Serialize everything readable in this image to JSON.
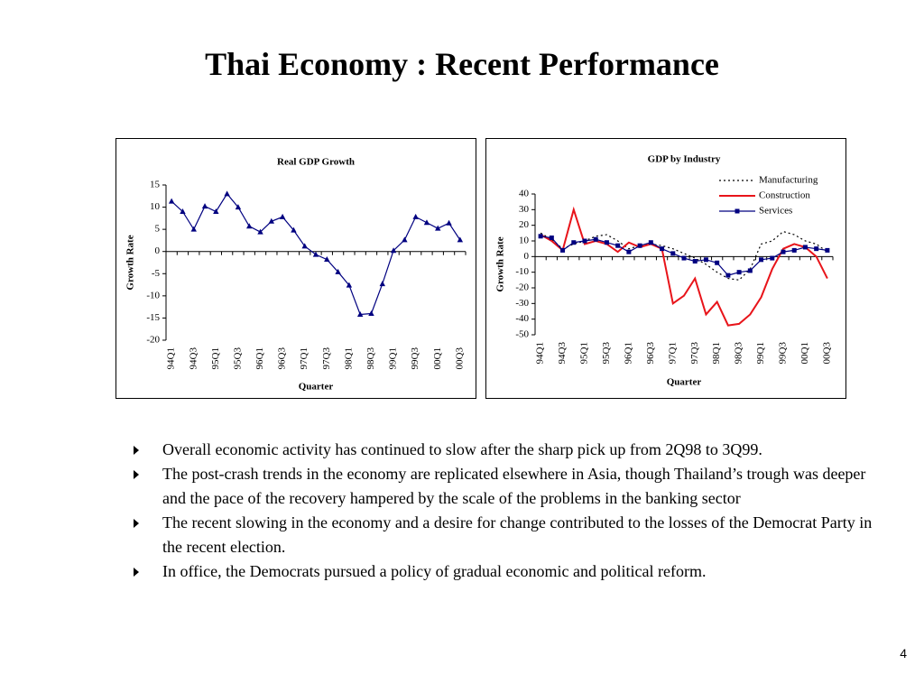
{
  "title": "Thai Economy  :  Recent Performance",
  "chart_data": [
    {
      "type": "line",
      "title": "Real GDP Growth",
      "x_label": "Quarter",
      "y_label": "Growth Rate",
      "categories": [
        "94Q1",
        null,
        "94Q3",
        null,
        "95Q1",
        null,
        "95Q3",
        null,
        "96Q1",
        null,
        "96Q3",
        null,
        "97Q1",
        null,
        "97Q3",
        null,
        "98Q1",
        null,
        "98Q3",
        null,
        "99Q1",
        null,
        "99Q3",
        null,
        "00Q1",
        null,
        "00Q3"
      ],
      "values": [
        11.3,
        9.0,
        5.0,
        10.2,
        9.0,
        13.0,
        10.0,
        5.7,
        4.4,
        6.8,
        7.8,
        4.8,
        1.2,
        -0.7,
        -1.8,
        -4.6,
        -7.6,
        -14.2,
        -14.0,
        -7.3,
        0.2,
        2.6,
        7.8,
        6.5,
        5.2,
        6.4,
        2.6
      ],
      "color": "#000080",
      "marker": "triangle",
      "line_style": "solid",
      "ylim": [
        -20,
        15
      ],
      "yticks": [
        -20,
        -15,
        -10,
        -5,
        0,
        5,
        10,
        15
      ],
      "grid": false
    },
    {
      "type": "line",
      "title": "GDP by Industry",
      "x_label": "Quarter",
      "y_label": "Growth Rate",
      "categories": [
        "94Q1",
        null,
        "94Q3",
        null,
        "95Q1",
        null,
        "95Q3",
        null,
        "96Q1",
        null,
        "96Q3",
        null,
        "97Q1",
        null,
        "97Q3",
        null,
        "98Q1",
        null,
        "98Q3",
        null,
        "99Q1",
        null,
        "99Q3",
        null,
        "00Q1",
        null,
        "00Q3"
      ],
      "series": [
        {
          "name": "Manufacturing",
          "color": "#000000",
          "line_style": "dotted",
          "marker": "none",
          "values": [
            15,
            11,
            5,
            8,
            10,
            13,
            14,
            10,
            5,
            7,
            8,
            7,
            5,
            2,
            -1,
            -5,
            -10,
            -14,
            -15,
            -8,
            8,
            10,
            16,
            14,
            10,
            8,
            3
          ]
        },
        {
          "name": "Construction",
          "color": "#e8141a",
          "line_style": "solid",
          "marker": "none",
          "values": [
            14,
            10,
            4,
            30,
            8,
            10,
            8,
            3,
            9,
            6,
            8,
            5,
            -30,
            -25,
            -14,
            -37,
            -29,
            -44,
            -43,
            -37,
            -26,
            -8,
            5,
            8,
            6,
            0,
            -14
          ]
        },
        {
          "name": "Services",
          "color": "#000080",
          "line_style": "solid",
          "marker": "square",
          "values": [
            13,
            12,
            4,
            9,
            10,
            11,
            9,
            7,
            3,
            7,
            9,
            5,
            2,
            -1,
            -3,
            -2,
            -4,
            -12,
            -10,
            -9,
            -2,
            -1,
            3,
            4,
            6,
            5,
            4
          ]
        }
      ],
      "legend": "upper right",
      "ylim": [
        -50,
        40
      ],
      "yticks": [
        -50,
        -40,
        -30,
        -20,
        -10,
        0,
        10,
        20,
        30,
        40
      ],
      "grid": false
    }
  ],
  "bullets": [
    "Overall economic activity has continued to slow after the sharp pick up from 2Q98 to 3Q99.",
    "The post-crash trends in the economy are replicated elsewhere in Asia, though Thailand’s trough was deeper and the pace of the recovery hampered by the scale of the problems in the banking sector",
    "The recent slowing in the economy and a desire for change contributed to the losses of the Democrat Party in the recent election.",
    "In office, the Democrats pursued a policy of gradual economic and political reform."
  ],
  "page_number": "4"
}
